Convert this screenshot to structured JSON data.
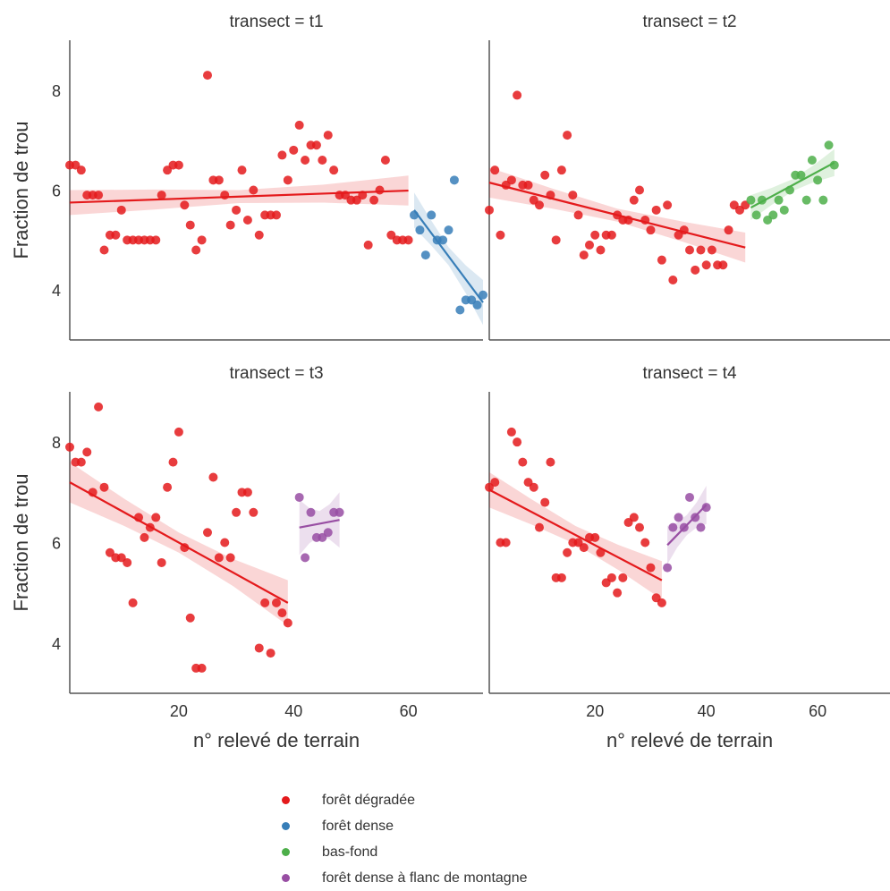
{
  "chart_data": {
    "type": "scatter",
    "xlabel": "n° relevé de terrain",
    "ylabel": "Fraction de trou",
    "xlim": [
      1,
      73
    ],
    "ylim": [
      3,
      9
    ],
    "x_ticks": [
      20,
      40,
      60
    ],
    "y_ticks": [
      4,
      6,
      8
    ],
    "grid": false,
    "legend_position": "bottom",
    "colors": {
      "forêt dégradée": "#e41a1c",
      "forêt dense": "#377eb8",
      "bas-fond": "#4daf4a",
      "forêt dense à flanc de montagne": "#984ea3"
    },
    "legend": [
      "forêt dégradée",
      "forêt dense",
      "bas-fond",
      "forêt dense à flanc de montagne"
    ],
    "panels": [
      {
        "title": "transect = t1",
        "series": [
          {
            "name": "forêt dégradée",
            "points": [
              [
                1,
                6.5
              ],
              [
                2,
                6.5
              ],
              [
                3,
                6.4
              ],
              [
                4,
                5.9
              ],
              [
                5,
                5.9
              ],
              [
                6,
                5.9
              ],
              [
                7,
                4.8
              ],
              [
                8,
                5.1
              ],
              [
                9,
                5.1
              ],
              [
                10,
                5.6
              ],
              [
                11,
                5.0
              ],
              [
                12,
                5.0
              ],
              [
                13,
                5.0
              ],
              [
                14,
                5.0
              ],
              [
                15,
                5.0
              ],
              [
                16,
                5.0
              ],
              [
                17,
                5.9
              ],
              [
                18,
                6.4
              ],
              [
                19,
                6.5
              ],
              [
                20,
                6.5
              ],
              [
                21,
                5.7
              ],
              [
                22,
                5.3
              ],
              [
                23,
                4.8
              ],
              [
                24,
                5.0
              ],
              [
                25,
                8.3
              ],
              [
                26,
                6.2
              ],
              [
                27,
                6.2
              ],
              [
                28,
                5.9
              ],
              [
                29,
                5.3
              ],
              [
                30,
                5.6
              ],
              [
                31,
                6.4
              ],
              [
                32,
                5.4
              ],
              [
                33,
                6.0
              ],
              [
                34,
                5.1
              ],
              [
                35,
                5.5
              ],
              [
                36,
                5.5
              ],
              [
                37,
                5.5
              ],
              [
                38,
                6.7
              ],
              [
                39,
                6.2
              ],
              [
                40,
                6.8
              ],
              [
                41,
                7.3
              ],
              [
                42,
                6.6
              ],
              [
                43,
                6.9
              ],
              [
                44,
                6.9
              ],
              [
                45,
                6.6
              ],
              [
                46,
                7.1
              ],
              [
                47,
                6.4
              ],
              [
                48,
                5.9
              ],
              [
                49,
                5.9
              ],
              [
                50,
                5.8
              ],
              [
                51,
                5.8
              ],
              [
                52,
                5.9
              ],
              [
                53,
                4.9
              ],
              [
                54,
                5.8
              ],
              [
                55,
                6.0
              ],
              [
                56,
                6.6
              ],
              [
                57,
                5.1
              ],
              [
                58,
                5.0
              ],
              [
                59,
                5.0
              ],
              [
                60,
                5.0
              ]
            ],
            "fit": [
              5.75,
              5.99
            ],
            "band_half_width": [
              0.25,
              0.2,
              0.13,
              0.18,
              0.3
            ]
          },
          {
            "name": "forêt dense",
            "points": [
              [
                61,
                5.5
              ],
              [
                62,
                5.2
              ],
              [
                63,
                4.7
              ],
              [
                64,
                5.5
              ],
              [
                65,
                5.0
              ],
              [
                66,
                5.0
              ],
              [
                67,
                5.2
              ],
              [
                68,
                6.2
              ],
              [
                69,
                3.6
              ],
              [
                70,
                3.8
              ],
              [
                71,
                3.8
              ],
              [
                72,
                3.7
              ],
              [
                73,
                3.9
              ]
            ],
            "fit": [
              5.6,
              3.75
            ],
            "band_half_width": [
              0.35,
              0.25,
              0.18,
              0.28,
              0.45
            ]
          }
        ]
      },
      {
        "title": "transect = t2",
        "series": [
          {
            "name": "forêt dégradée",
            "points": [
              [
                1,
                5.6
              ],
              [
                2,
                6.4
              ],
              [
                3,
                5.1
              ],
              [
                4,
                6.1
              ],
              [
                5,
                6.2
              ],
              [
                6,
                7.9
              ],
              [
                7,
                6.1
              ],
              [
                8,
                6.1
              ],
              [
                9,
                5.8
              ],
              [
                10,
                5.7
              ],
              [
                11,
                6.3
              ],
              [
                12,
                5.9
              ],
              [
                13,
                5.0
              ],
              [
                14,
                6.4
              ],
              [
                15,
                7.1
              ],
              [
                16,
                5.9
              ],
              [
                17,
                5.5
              ],
              [
                18,
                4.7
              ],
              [
                19,
                4.9
              ],
              [
                20,
                5.1
              ],
              [
                21,
                4.8
              ],
              [
                22,
                5.1
              ],
              [
                23,
                5.1
              ],
              [
                24,
                5.5
              ],
              [
                25,
                5.4
              ],
              [
                26,
                5.4
              ],
              [
                27,
                5.8
              ],
              [
                28,
                6.0
              ],
              [
                29,
                5.4
              ],
              [
                30,
                5.2
              ],
              [
                31,
                5.6
              ],
              [
                32,
                4.6
              ],
              [
                33,
                5.7
              ],
              [
                34,
                4.2
              ],
              [
                35,
                5.1
              ],
              [
                36,
                5.2
              ],
              [
                37,
                4.8
              ],
              [
                38,
                4.4
              ],
              [
                39,
                4.8
              ],
              [
                40,
                4.5
              ],
              [
                41,
                4.8
              ],
              [
                42,
                4.5
              ],
              [
                43,
                4.5
              ],
              [
                44,
                5.2
              ],
              [
                45,
                5.7
              ],
              [
                46,
                5.6
              ],
              [
                47,
                5.7
              ]
            ],
            "fit": [
              6.15,
              4.85
            ],
            "band_half_width": [
              0.3,
              0.2,
              0.13,
              0.2,
              0.3
            ]
          },
          {
            "name": "bas-fond",
            "points": [
              [
                48,
                5.8
              ],
              [
                49,
                5.5
              ],
              [
                50,
                5.8
              ],
              [
                51,
                5.4
              ],
              [
                52,
                5.5
              ],
              [
                53,
                5.8
              ],
              [
                54,
                5.6
              ],
              [
                55,
                6.0
              ],
              [
                56,
                6.3
              ],
              [
                57,
                6.3
              ],
              [
                58,
                5.8
              ],
              [
                59,
                6.6
              ],
              [
                60,
                6.2
              ],
              [
                61,
                5.8
              ],
              [
                62,
                6.9
              ],
              [
                63,
                6.5
              ]
            ],
            "fit": [
              5.65,
              6.55
            ],
            "band_half_width": [
              0.25,
              0.17,
              0.12,
              0.17,
              0.27
            ]
          }
        ]
      },
      {
        "title": "transect = t3",
        "series": [
          {
            "name": "forêt dégradée",
            "points": [
              [
                1,
                7.9
              ],
              [
                2,
                7.6
              ],
              [
                3,
                7.6
              ],
              [
                4,
                7.8
              ],
              [
                5,
                7.0
              ],
              [
                6,
                8.7
              ],
              [
                7,
                7.1
              ],
              [
                8,
                5.8
              ],
              [
                9,
                5.7
              ],
              [
                10,
                5.7
              ],
              [
                11,
                5.6
              ],
              [
                12,
                4.8
              ],
              [
                13,
                6.5
              ],
              [
                14,
                6.1
              ],
              [
                15,
                6.3
              ],
              [
                16,
                6.5
              ],
              [
                17,
                5.6
              ],
              [
                18,
                7.1
              ],
              [
                19,
                7.6
              ],
              [
                20,
                8.2
              ],
              [
                21,
                5.9
              ],
              [
                22,
                4.5
              ],
              [
                23,
                3.5
              ],
              [
                24,
                3.5
              ],
              [
                25,
                6.2
              ],
              [
                26,
                7.3
              ],
              [
                27,
                5.7
              ],
              [
                28,
                6.0
              ],
              [
                29,
                5.7
              ],
              [
                30,
                6.6
              ],
              [
                31,
                7.0
              ],
              [
                32,
                7.0
              ],
              [
                33,
                6.6
              ],
              [
                34,
                3.9
              ],
              [
                35,
                4.8
              ],
              [
                36,
                3.8
              ],
              [
                37,
                4.8
              ],
              [
                38,
                4.6
              ],
              [
                39,
                4.4
              ]
            ],
            "fit": [
              7.2,
              4.8
            ],
            "band_half_width": [
              0.4,
              0.27,
              0.2,
              0.27,
              0.45
            ]
          },
          {
            "name": "forêt dense à flanc de montagne",
            "points": [
              [
                41,
                6.9
              ],
              [
                42,
                5.7
              ],
              [
                43,
                6.6
              ],
              [
                44,
                6.1
              ],
              [
                45,
                6.1
              ],
              [
                46,
                6.2
              ],
              [
                47,
                6.6
              ],
              [
                48,
                6.6
              ]
            ],
            "fit": [
              6.3,
              6.45
            ],
            "band_half_width": [
              0.55,
              0.35,
              0.25,
              0.35,
              0.55
            ]
          }
        ]
      },
      {
        "title": "transect = t4",
        "series": [
          {
            "name": "forêt dégradée",
            "points": [
              [
                1,
                7.1
              ],
              [
                2,
                7.2
              ],
              [
                3,
                6.0
              ],
              [
                4,
                6.0
              ],
              [
                5,
                8.2
              ],
              [
                6,
                8.0
              ],
              [
                7,
                7.6
              ],
              [
                8,
                7.2
              ],
              [
                9,
                7.1
              ],
              [
                10,
                6.3
              ],
              [
                11,
                6.8
              ],
              [
                12,
                7.6
              ],
              [
                13,
                5.3
              ],
              [
                14,
                5.3
              ],
              [
                15,
                5.8
              ],
              [
                16,
                6.0
              ],
              [
                17,
                6.0
              ],
              [
                18,
                5.9
              ],
              [
                19,
                6.1
              ],
              [
                20,
                6.1
              ],
              [
                21,
                5.8
              ],
              [
                22,
                5.2
              ],
              [
                23,
                5.3
              ],
              [
                24,
                5.0
              ],
              [
                25,
                5.3
              ],
              [
                26,
                6.4
              ],
              [
                27,
                6.5
              ],
              [
                28,
                6.3
              ],
              [
                29,
                6.0
              ],
              [
                30,
                5.5
              ],
              [
                31,
                4.9
              ],
              [
                32,
                4.8
              ]
            ],
            "fit": [
              7.05,
              5.25
            ],
            "band_half_width": [
              0.35,
              0.25,
              0.18,
              0.25,
              0.38
            ]
          },
          {
            "name": "forêt dense à flanc de montagne",
            "points": [
              [
                33,
                5.5
              ],
              [
                34,
                6.3
              ],
              [
                35,
                6.5
              ],
              [
                36,
                6.3
              ],
              [
                37,
                6.9
              ],
              [
                38,
                6.5
              ],
              [
                39,
                6.3
              ],
              [
                40,
                6.7
              ]
            ],
            "fit": [
              5.95,
              6.75
            ],
            "band_half_width": [
              0.38,
              0.25,
              0.2,
              0.25,
              0.38
            ]
          }
        ]
      }
    ]
  }
}
